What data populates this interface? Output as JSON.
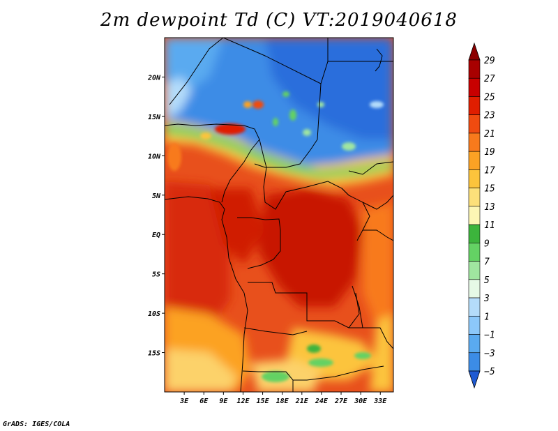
{
  "title": "2m dewpoint Td (C) VT:2019040618",
  "credit": "GrADS: IGES/COLA",
  "map": {
    "variable": "2m dewpoint",
    "units": "C",
    "valid_time": "2019040618",
    "lat_range": [
      -20,
      25
    ],
    "lon_range": [
      0,
      35
    ],
    "lat_ticks": [
      {
        "value": 20,
        "label": "20N"
      },
      {
        "value": 15,
        "label": "15N"
      },
      {
        "value": 10,
        "label": "10N"
      },
      {
        "value": 5,
        "label": "5N"
      },
      {
        "value": 0,
        "label": "EQ"
      },
      {
        "value": -5,
        "label": "5S"
      },
      {
        "value": -10,
        "label": "10S"
      },
      {
        "value": -15,
        "label": "15S"
      }
    ],
    "lon_ticks": [
      {
        "value": 3,
        "label": "3E"
      },
      {
        "value": 6,
        "label": "6E"
      },
      {
        "value": 9,
        "label": "9E"
      },
      {
        "value": 12,
        "label": "12E"
      },
      {
        "value": 15,
        "label": "15E"
      },
      {
        "value": 18,
        "label": "18E"
      },
      {
        "value": 21,
        "label": "21E"
      },
      {
        "value": 24,
        "label": "24E"
      },
      {
        "value": 27,
        "label": "27E"
      },
      {
        "value": 30,
        "label": "30E"
      },
      {
        "value": 33,
        "label": "33E"
      }
    ]
  },
  "colorbar": {
    "levels": [
      {
        "label": "29",
        "color": "#a80000"
      },
      {
        "label": "27",
        "color": "#c80000"
      },
      {
        "label": "25",
        "color": "#e01e00"
      },
      {
        "label": "23",
        "color": "#f04b10"
      },
      {
        "label": "21",
        "color": "#f87a1c"
      },
      {
        "label": "19",
        "color": "#fca224"
      },
      {
        "label": "17",
        "color": "#fcc43c"
      },
      {
        "label": "15",
        "color": "#fce07a"
      },
      {
        "label": "13",
        "color": "#fcf6b4"
      },
      {
        "label": "11",
        "color": "#3cb43c"
      },
      {
        "label": "9",
        "color": "#64d264"
      },
      {
        "label": "7",
        "color": "#a0e6a0"
      },
      {
        "label": "5",
        "color": "#e6fae6"
      },
      {
        "label": "3",
        "color": "#b4dcfa"
      },
      {
        "label": "1",
        "color": "#8cc8fa"
      },
      {
        "label": "−1",
        "color": "#5aaaf0"
      },
      {
        "label": "−3",
        "color": "#3c8ce6"
      },
      {
        "label": "−5",
        "color": "#2a6edc"
      }
    ],
    "top_color": "#8c0000",
    "bottom_color": "#1e5ad2"
  }
}
